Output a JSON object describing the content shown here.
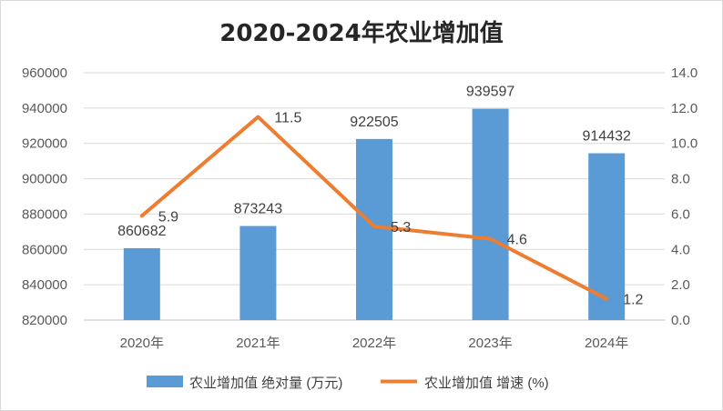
{
  "chart_data": {
    "type": "bar",
    "title": "2020-2024年农业增加值",
    "categories": [
      "2020年",
      "2021年",
      "2022年",
      "2023年",
      "2024年"
    ],
    "series": [
      {
        "name": "农业增加值 绝对量 (万元)",
        "type": "bar",
        "axis": "left",
        "color": "#5B9BD5",
        "values": [
          860682,
          873243,
          922505,
          939597,
          914432
        ],
        "labels": [
          "860682",
          "873243",
          "922505",
          "939597",
          "914432"
        ]
      },
      {
        "name": "农业增加值 增速 (%)",
        "type": "line",
        "axis": "right",
        "color": "#ED7D31",
        "values": [
          5.9,
          11.5,
          5.3,
          4.6,
          1.2
        ],
        "labels": [
          "5.9",
          "11.5",
          "5.3",
          "4.6",
          "1.2"
        ]
      }
    ],
    "y_left": {
      "ylim": [
        820000,
        960000
      ],
      "ticks": [
        "820000",
        "840000",
        "860000",
        "880000",
        "900000",
        "920000",
        "940000",
        "960000"
      ]
    },
    "y_right": {
      "ylim": [
        0,
        14
      ],
      "ticks": [
        "0.0",
        "2.0",
        "4.0",
        "6.0",
        "8.0",
        "10.0",
        "12.0",
        "14.0"
      ]
    },
    "grid": true,
    "legend_position": "bottom"
  }
}
